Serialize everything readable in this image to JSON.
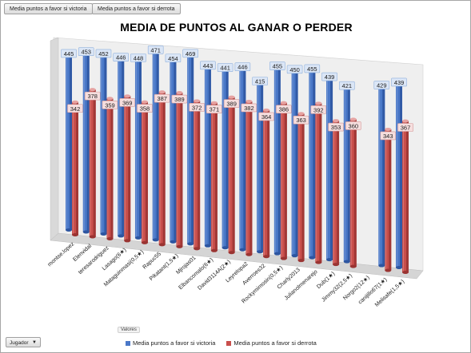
{
  "field_buttons": [
    "Media puntos a favor si victoria",
    "Media puntos a favor si derrota"
  ],
  "filter": {
    "label": "Jugador",
    "icon": "dropdown-arrow-icon"
  },
  "values_label": "Valores",
  "colors": {
    "victoria_front": "#4a78c8",
    "victoria_side": "#2d55a0",
    "victoria_top": "#9cb9ea",
    "derrota_front": "#c94f4c",
    "derrota_side": "#9a3432",
    "derrota_top": "#e6a3a2",
    "label_bg_blue": "#dbe6f6",
    "label_border_blue": "#8fb0dc",
    "label_bg_red": "#f6dede",
    "label_border_red": "#d49a99"
  },
  "chart_data": {
    "type": "bar",
    "title": "MEDIA DE PUNTOS AL GANAR O PERDER",
    "style": "3d-cylinder",
    "legend_position": "bottom",
    "ylim": [
      0,
      471
    ],
    "categories": [
      "montse.lopez",
      "Elenvidal",
      "teresarodriguez",
      "Lasago(6★)",
      "Mataguinmasi(0,5★)",
      "Rapuc55",
      "Pikatant(1,5★)",
      "Mjrojas01",
      "Elbancomalo(6★)",
      "David3114A(2★)",
      "Leyrelopa2",
      "Averroes32",
      "Rockymimosin(0,5★)",
      "Charly2013",
      "Julianolmenarejo",
      "Dub(1★)",
      "Jimmy32(2,5★)",
      "Norgo2(12★)",
      "canijillo67(1★)",
      "Melisafe(1,5★)"
    ],
    "series": [
      {
        "name": "Media puntos a favor si victoria",
        "values": [
          445,
          453,
          452,
          446,
          448,
          471,
          454,
          469,
          443,
          441,
          446,
          415,
          455,
          450,
          455,
          439,
          421,
          null,
          429,
          439
        ]
      },
      {
        "name": "Media puntos a favor si derrota",
        "values": [
          342,
          378,
          359,
          369,
          358,
          387,
          389,
          372,
          371,
          389,
          382,
          364,
          386,
          363,
          392,
          353,
          360,
          null,
          343,
          367
        ]
      }
    ]
  }
}
